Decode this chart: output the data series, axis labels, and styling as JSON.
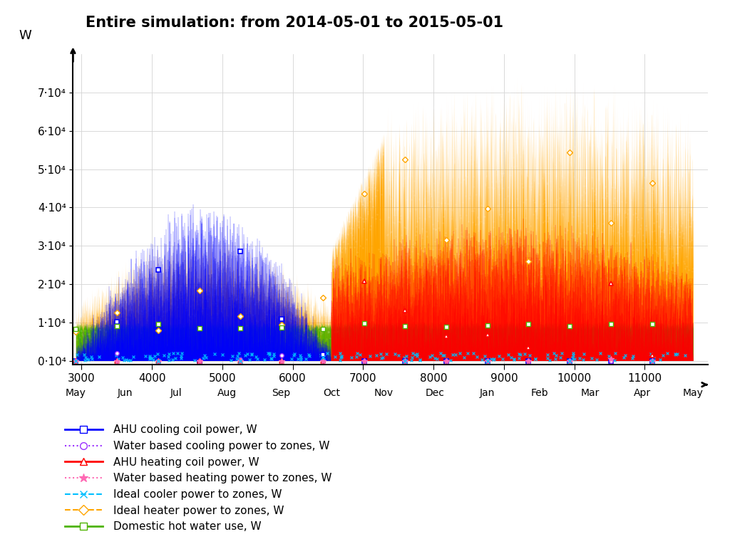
{
  "title": "Entire simulation: from 2014-05-01 to 2015-05-01",
  "ylabel": "W",
  "xlim": [
    2880,
    11900
  ],
  "ylim": [
    -2000,
    80000
  ],
  "yticks": [
    0,
    10000,
    20000,
    30000,
    40000,
    50000,
    60000,
    70000
  ],
  "ytick_labels": [
    "0·10⁴",
    "1·10⁴",
    "2·10⁴",
    "3·10⁴",
    "4·10⁴",
    "5·10⁴",
    "6·10⁴",
    "7·10⁴"
  ],
  "month_labels": [
    "May",
    "Jun",
    "Jul",
    "Aug",
    "Sep",
    "Oct",
    "Nov",
    "Dec",
    "Jan",
    "Feb",
    "Mar",
    "Apr",
    "May"
  ],
  "month_ticks": [
    2920,
    3624,
    4344,
    5064,
    5832,
    6552,
    7296,
    8016,
    8760,
    9504,
    10224,
    10968,
    11688
  ],
  "num_ticks": [
    3000,
    4000,
    5000,
    6000,
    7000,
    8000,
    9000,
    10000,
    11000
  ],
  "colors": {
    "ahu_cooling": "#0000FF",
    "water_cooling": "#9B30FF",
    "ahu_heating": "#FF0000",
    "water_heating": "#FF69B4",
    "ideal_cooler": "#00BFFF",
    "ideal_heater": "#FFA500",
    "dhw": "#4DB300"
  },
  "seed": 42,
  "n_points": 8760
}
